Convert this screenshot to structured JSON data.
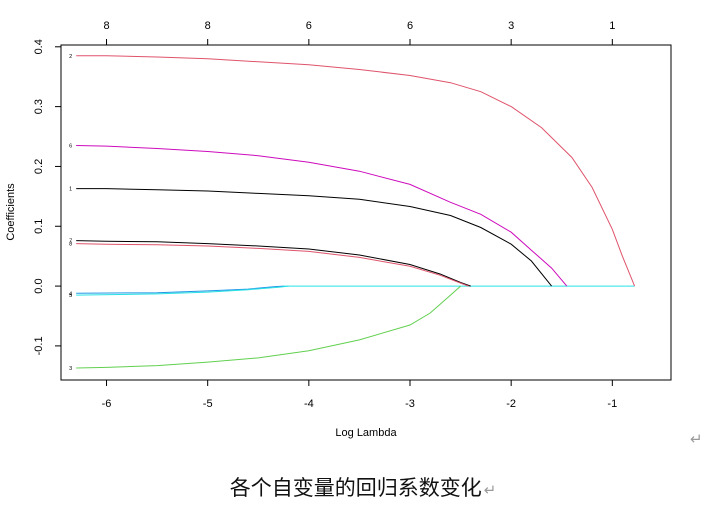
{
  "chart_data": {
    "type": "line",
    "title": "",
    "xlabel": "Log Lambda",
    "ylabel": "Coefficients",
    "xlim": [
      -6.45,
      -0.42
    ],
    "ylim": [
      -0.157,
      0.403
    ],
    "x_ticks": [
      -6,
      -5,
      -4,
      -3,
      -2,
      -1
    ],
    "y_ticks": [
      -0.1,
      0.0,
      0.1,
      0.2,
      0.3,
      0.4
    ],
    "x_tick_labels": [
      "-6",
      "-5",
      "-4",
      "-3",
      "-2",
      "-1"
    ],
    "y_tick_labels": [
      "-0.1",
      "0.0",
      "0.1",
      "0.2",
      "0.3",
      "0.4"
    ],
    "top_axis": {
      "positions": [
        -6,
        -5,
        -4,
        -3,
        -2,
        -1
      ],
      "labels": [
        "8",
        "8",
        "6",
        "6",
        "3",
        "1"
      ]
    },
    "grid": false,
    "legend": "none",
    "series": [
      {
        "label": "2",
        "color": "#DF536B",
        "points": [
          [
            -6.3,
            0.385
          ],
          [
            -6.0,
            0.385
          ],
          [
            -5.5,
            0.383
          ],
          [
            -5.0,
            0.38
          ],
          [
            -4.5,
            0.375
          ],
          [
            -4.0,
            0.37
          ],
          [
            -3.5,
            0.362
          ],
          [
            -3.0,
            0.352
          ],
          [
            -2.6,
            0.34
          ],
          [
            -2.3,
            0.325
          ],
          [
            -2.0,
            0.3
          ],
          [
            -1.7,
            0.265
          ],
          [
            -1.4,
            0.215
          ],
          [
            -1.2,
            0.165
          ],
          [
            -1.0,
            0.095
          ],
          [
            -0.9,
            0.05
          ],
          [
            -0.78,
            0.0
          ]
        ]
      },
      {
        "label": "6",
        "color": "#CD0BBC",
        "points": [
          [
            -6.3,
            0.235
          ],
          [
            -6.0,
            0.234
          ],
          [
            -5.5,
            0.23
          ],
          [
            -5.0,
            0.225
          ],
          [
            -4.5,
            0.218
          ],
          [
            -4.0,
            0.207
          ],
          [
            -3.5,
            0.192
          ],
          [
            -3.0,
            0.17
          ],
          [
            -2.6,
            0.14
          ],
          [
            -2.3,
            0.12
          ],
          [
            -2.0,
            0.09
          ],
          [
            -1.8,
            0.06
          ],
          [
            -1.6,
            0.03
          ],
          [
            -1.45,
            0.0
          ]
        ]
      },
      {
        "label": "1",
        "color": "#000000",
        "points": [
          [
            -6.3,
            0.163
          ],
          [
            -6.0,
            0.163
          ],
          [
            -5.5,
            0.161
          ],
          [
            -5.0,
            0.159
          ],
          [
            -4.5,
            0.155
          ],
          [
            -4.0,
            0.151
          ],
          [
            -3.5,
            0.145
          ],
          [
            -3.0,
            0.133
          ],
          [
            -2.6,
            0.118
          ],
          [
            -2.3,
            0.098
          ],
          [
            -2.0,
            0.07
          ],
          [
            -1.8,
            0.042
          ],
          [
            -1.6,
            0.0
          ]
        ]
      },
      {
        "label": "7",
        "color": "#000000",
        "points": [
          [
            -6.3,
            0.076
          ],
          [
            -6.0,
            0.075
          ],
          [
            -5.5,
            0.074
          ],
          [
            -5.0,
            0.071
          ],
          [
            -4.5,
            0.067
          ],
          [
            -4.0,
            0.062
          ],
          [
            -3.5,
            0.052
          ],
          [
            -3.0,
            0.036
          ],
          [
            -2.7,
            0.02
          ],
          [
            -2.5,
            0.006
          ],
          [
            -2.4,
            0.0
          ]
        ]
      },
      {
        "label": "8",
        "color": "#DF536B",
        "points": [
          [
            -6.3,
            0.071
          ],
          [
            -6.0,
            0.07
          ],
          [
            -5.5,
            0.069
          ],
          [
            -5.0,
            0.067
          ],
          [
            -4.5,
            0.063
          ],
          [
            -4.0,
            0.058
          ],
          [
            -3.5,
            0.048
          ],
          [
            -3.0,
            0.033
          ],
          [
            -2.7,
            0.018
          ],
          [
            -2.5,
            0.005
          ],
          [
            -2.42,
            0.0
          ]
        ]
      },
      {
        "label": "4",
        "color": "#2297E6",
        "points": [
          [
            -6.3,
            -0.012
          ],
          [
            -5.5,
            -0.011
          ],
          [
            -5.0,
            -0.008
          ],
          [
            -4.6,
            -0.005
          ],
          [
            -4.35,
            -0.001
          ],
          [
            -4.25,
            0.0
          ]
        ]
      },
      {
        "label": "5",
        "color": "#28E2E5",
        "points": [
          [
            -6.3,
            -0.015
          ],
          [
            -5.5,
            -0.013
          ],
          [
            -5.0,
            -0.01
          ],
          [
            -4.6,
            -0.006
          ],
          [
            -4.3,
            -0.002
          ],
          [
            -4.2,
            0.0
          ]
        ]
      },
      {
        "label": "3",
        "color": "#61D04F",
        "points": [
          [
            -6.3,
            -0.137
          ],
          [
            -6.0,
            -0.136
          ],
          [
            -5.5,
            -0.133
          ],
          [
            -5.0,
            -0.127
          ],
          [
            -4.5,
            -0.12
          ],
          [
            -4.0,
            -0.108
          ],
          [
            -3.5,
            -0.09
          ],
          [
            -3.0,
            -0.065
          ],
          [
            -2.8,
            -0.045
          ],
          [
            -2.6,
            -0.015
          ],
          [
            -2.5,
            0.0
          ]
        ]
      }
    ],
    "zero_line_color": "#28E2E5",
    "zero_line_x": [
      -4.25,
      -0.78
    ]
  },
  "caption": {
    "text": "各个自变量的回归系数变化",
    "return_mark": "↵"
  },
  "side_return_mark": "↵"
}
